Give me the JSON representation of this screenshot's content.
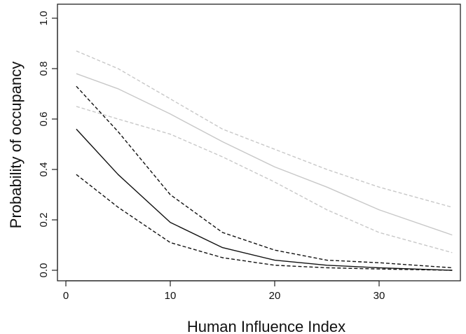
{
  "chart_data": {
    "type": "line",
    "title": "",
    "xlabel": "Human Influence Index",
    "ylabel": "Probability of occupancy",
    "xlim": [
      1,
      37
    ],
    "ylim": [
      0.0,
      1.0
    ],
    "xticks": [
      0,
      10,
      20,
      30
    ],
    "yticks": [
      0.0,
      0.2,
      0.4,
      0.6,
      0.8,
      1.0
    ],
    "x": [
      1,
      5,
      10,
      15,
      20,
      25,
      30,
      37
    ],
    "series": [
      {
        "color": "#c8c8c8",
        "style": "solid",
        "values": [
          0.78,
          0.72,
          0.62,
          0.51,
          0.41,
          0.33,
          0.24,
          0.14
        ]
      },
      {
        "color": "#c8c8c8",
        "style": "dashed",
        "values": [
          0.87,
          0.8,
          0.68,
          0.56,
          0.48,
          0.4,
          0.33,
          0.25
        ]
      },
      {
        "color": "#c8c8c8",
        "style": "dashed",
        "values": [
          0.65,
          0.6,
          0.54,
          0.45,
          0.35,
          0.24,
          0.15,
          0.07
        ]
      },
      {
        "color": "#111111",
        "style": "solid",
        "values": [
          0.56,
          0.38,
          0.19,
          0.09,
          0.04,
          0.02,
          0.01,
          0.0
        ]
      },
      {
        "color": "#111111",
        "style": "dashed",
        "values": [
          0.73,
          0.55,
          0.3,
          0.15,
          0.08,
          0.04,
          0.03,
          0.01
        ]
      },
      {
        "color": "#111111",
        "style": "dashed",
        "values": [
          0.38,
          0.25,
          0.11,
          0.05,
          0.02,
          0.01,
          0.005,
          0.0
        ]
      }
    ]
  }
}
